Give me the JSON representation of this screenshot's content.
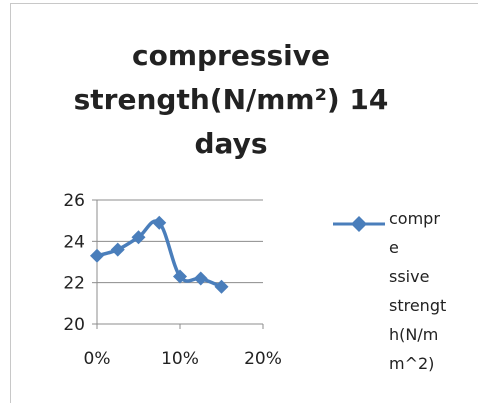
{
  "chart_data": {
    "type": "line",
    "title_lines": [
      "compressive",
      "strength(N/mm²)  14",
      "days"
    ],
    "x": [
      0,
      2.5,
      5,
      7.5,
      10,
      12.5,
      15
    ],
    "x_ticks": [
      0,
      10,
      20
    ],
    "x_tick_labels": [
      "0%",
      "10%",
      "20%"
    ],
    "xlim": [
      0,
      20
    ],
    "y_ticks": [
      20,
      22,
      24,
      26
    ],
    "y_tick_labels": [
      "20",
      "22",
      "24",
      "26"
    ],
    "ylim": [
      20,
      26
    ],
    "series": [
      {
        "name_lines": [
          "compre",
          "ssive",
          "strengt",
          "h(N/m",
          "m^2)"
        ],
        "values": [
          23.3,
          23.6,
          24.2,
          24.9,
          22.3,
          22.2,
          21.8
        ],
        "color": "#4a7ebb",
        "marker": "diamond"
      }
    ],
    "legend_position": "right",
    "grid": "horizontal"
  }
}
